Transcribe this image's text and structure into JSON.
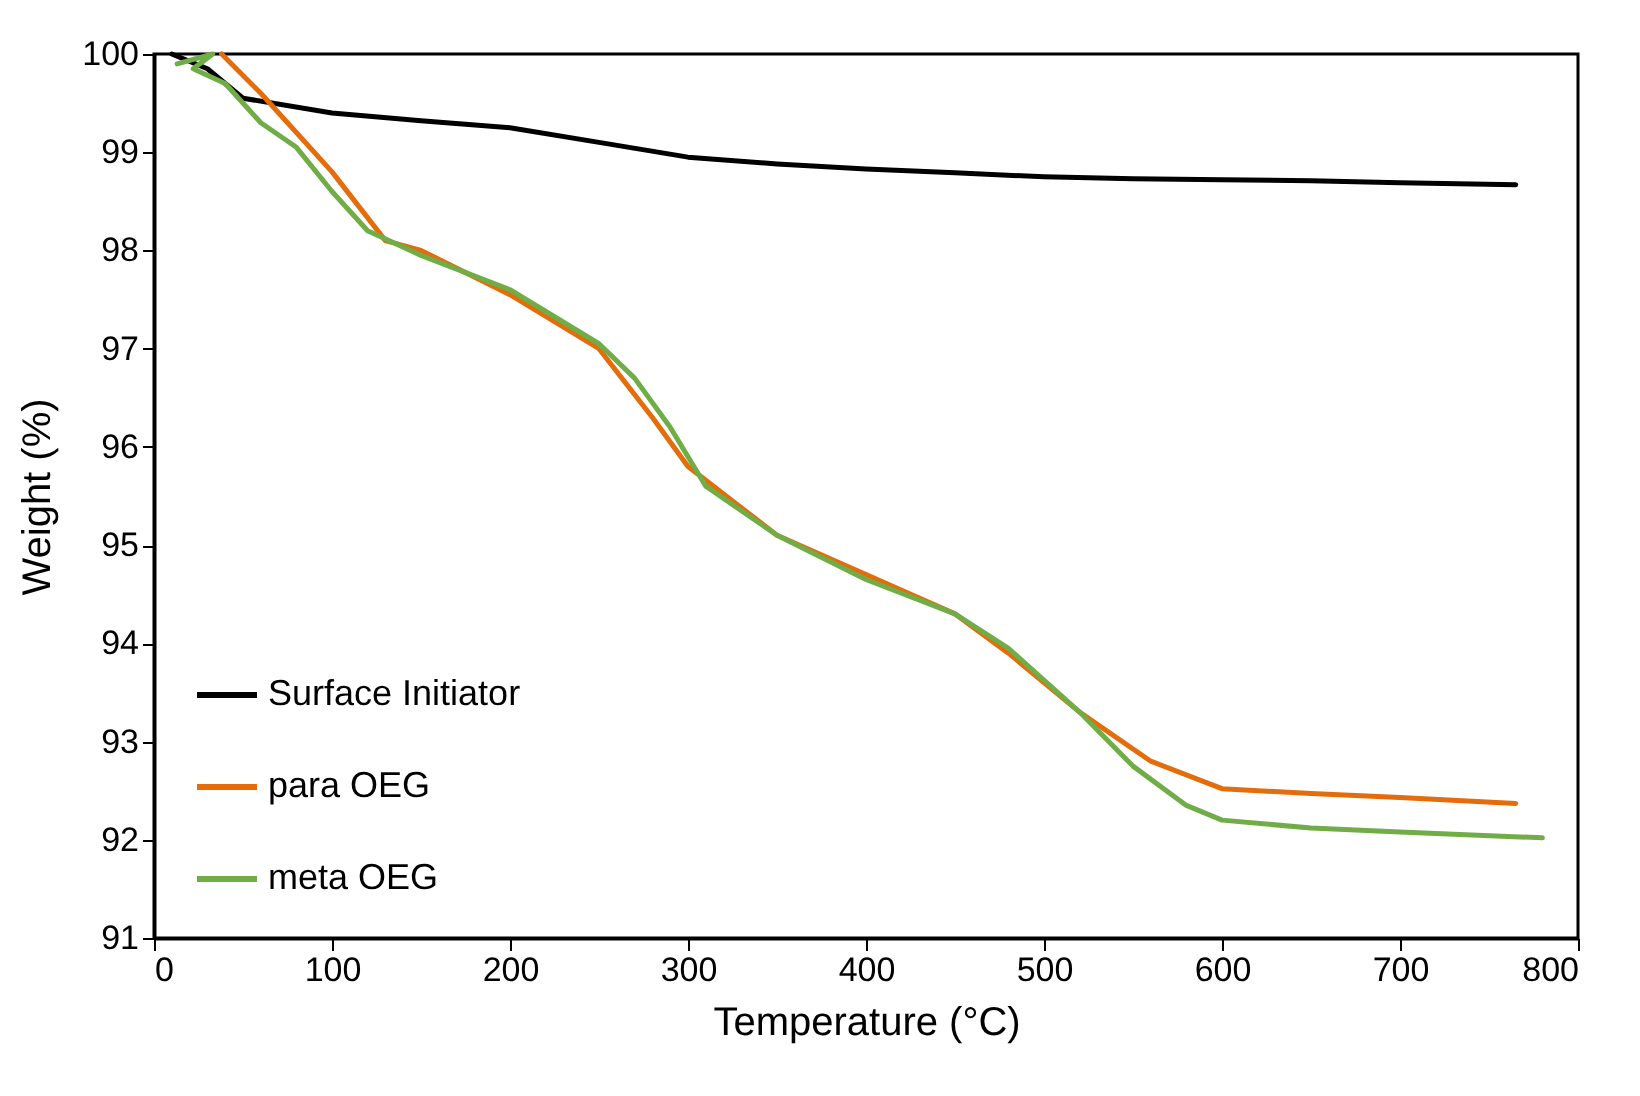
{
  "chart_data": {
    "type": "line",
    "xlabel": "Temperature (°C)",
    "ylabel": "Weight (%)",
    "xlim": [
      0,
      800
    ],
    "xticks": [
      0,
      100,
      200,
      300,
      400,
      500,
      600,
      700,
      800
    ],
    "ylim": [
      91,
      100
    ],
    "yticks": [
      91,
      92,
      93,
      94,
      95,
      96,
      97,
      98,
      99,
      100
    ],
    "grid": false,
    "legend": "bottom left",
    "marker": "none",
    "line_style": "solid",
    "series": [
      {
        "name": "Surface Initiator",
        "color": "#000000",
        "x": [
          10,
          30,
          50,
          100,
          150,
          200,
          250,
          300,
          350,
          400,
          450,
          500,
          550,
          600,
          650,
          700,
          765
        ],
        "values": [
          100,
          99.85,
          99.55,
          99.4,
          99.32,
          99.25,
          99.1,
          98.95,
          98.88,
          98.83,
          98.79,
          98.75,
          98.73,
          98.72,
          98.71,
          98.69,
          98.67
        ]
      },
      {
        "name": "para OEG",
        "color": "#e46c0a",
        "x": [
          38,
          60,
          100,
          130,
          150,
          200,
          250,
          280,
          300,
          350,
          400,
          450,
          480,
          520,
          560,
          600,
          650,
          700,
          765
        ],
        "values": [
          100,
          99.6,
          98.8,
          98.1,
          98.0,
          97.55,
          97.0,
          96.3,
          95.8,
          95.1,
          94.7,
          94.3,
          93.9,
          93.3,
          92.8,
          92.52,
          92.47,
          92.43,
          92.37
        ]
      },
      {
        "name": "meta OEG",
        "color": "#70ad47",
        "x": [
          13,
          33,
          22,
          40,
          60,
          80,
          100,
          120,
          150,
          200,
          250,
          270,
          290,
          310,
          350,
          400,
          450,
          480,
          520,
          550,
          580,
          600,
          650,
          700,
          780
        ],
        "values": [
          99.9,
          100,
          99.85,
          99.7,
          99.3,
          99.05,
          98.6,
          98.2,
          97.95,
          97.6,
          97.05,
          96.7,
          96.2,
          95.6,
          95.1,
          94.65,
          94.3,
          93.95,
          93.3,
          92.75,
          92.35,
          92.2,
          92.12,
          92.08,
          92.02
        ]
      }
    ]
  }
}
